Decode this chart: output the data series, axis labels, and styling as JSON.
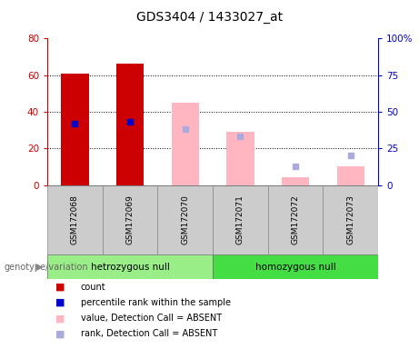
{
  "title": "GDS3404 / 1433027_at",
  "categories": [
    "GSM172068",
    "GSM172069",
    "GSM172070",
    "GSM172071",
    "GSM172072",
    "GSM172073"
  ],
  "group_labels": [
    "hetrozygous null",
    "homozygous null"
  ],
  "bar_count_values": [
    61,
    66,
    null,
    null,
    null,
    null
  ],
  "bar_count_color": "#CC0000",
  "bar_value_absent_values": [
    null,
    null,
    45,
    29,
    4,
    10
  ],
  "bar_value_absent_color": "#FFB6C1",
  "dot_rank_values": [
    42,
    43,
    null,
    null,
    null,
    null
  ],
  "dot_rank_color": "#0000CC",
  "dot_rank_absent_values": [
    null,
    null,
    38,
    33,
    13,
    20
  ],
  "dot_rank_absent_color": "#AAAADD",
  "ylim_left": [
    0,
    80
  ],
  "ylim_right": [
    0,
    100
  ],
  "yticks_left": [
    0,
    20,
    40,
    60,
    80
  ],
  "ytick_labels_right": [
    "0",
    "25",
    "50",
    "75",
    "100%"
  ],
  "ytick_values_right": [
    0,
    25,
    50,
    75,
    100
  ],
  "left_axis_color": "#CC0000",
  "right_axis_color": "#0000CC",
  "bar_width": 0.5,
  "genotype_label": "genotype/variation",
  "legend_items": [
    {
      "color": "#CC0000",
      "marker": "s",
      "label": "count"
    },
    {
      "color": "#0000CC",
      "marker": "s",
      "label": "percentile rank within the sample"
    },
    {
      "color": "#FFB6C1",
      "marker": "s",
      "label": "value, Detection Call = ABSENT"
    },
    {
      "color": "#AAAADD",
      "marker": "s",
      "label": "rank, Detection Call = ABSENT"
    }
  ]
}
